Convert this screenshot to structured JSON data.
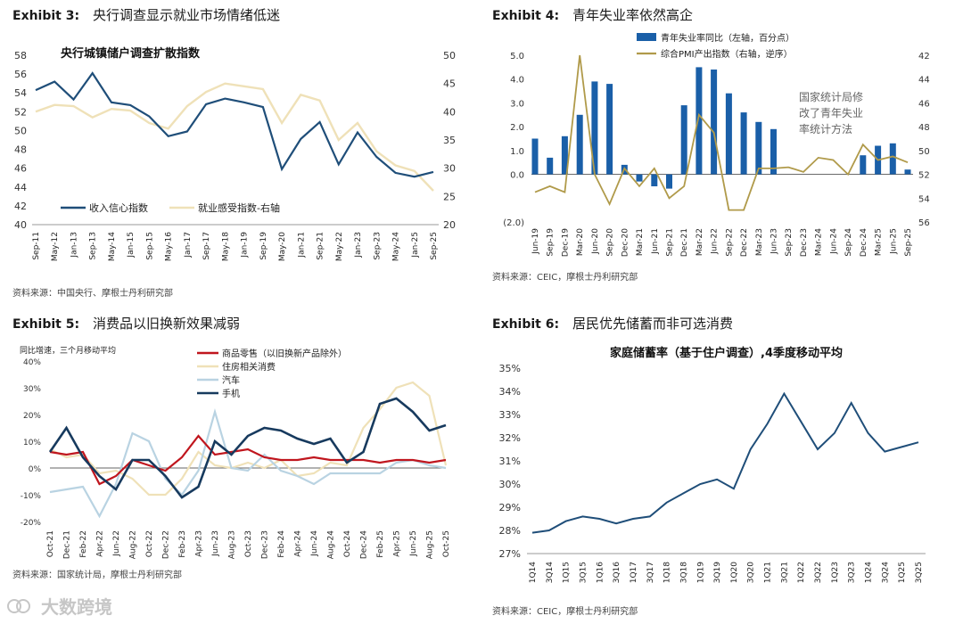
{
  "exhibits": [
    {
      "label": "Exhibit 3:",
      "title": "央行调查显示就业市场情绪低迷",
      "source": "资料来源：中国央行、摩根士丹利研究部"
    },
    {
      "label": "Exhibit 4:",
      "title": "青年失业率依然高企",
      "source": "资料来源：CEIC，摩根士丹利研究部"
    },
    {
      "label": "Exhibit 5:",
      "title": "消费品以旧换新效果减弱",
      "source": "资料来源：国家统计局，摩根士丹利研究部"
    },
    {
      "label": "Exhibit 6:",
      "title": "居民优先储蓄而非可选消费",
      "source": "资料来源：CEIC，摩根士丹利研究部"
    }
  ],
  "watermark": "大数跨境",
  "colors": {
    "navy": "#1f4e79",
    "cream": "#efe1b8",
    "blue": "#1a5fa8",
    "olive": "#b09a4a",
    "red": "#c0161e",
    "lightblue": "#b9d3e2",
    "darknavy": "#173a5e"
  },
  "chart_data": [
    {
      "type": "line",
      "title": "央行城镇储户调查扩散指数",
      "x": [
        "Sep-11",
        "May-12",
        "Jan-13",
        "Sep-13",
        "May-14",
        "Jan-15",
        "Sep-15",
        "May-16",
        "Jan-17",
        "Sep-17",
        "May-18",
        "Jan-19",
        "Sep-19",
        "May-20",
        "Jan-21",
        "Sep-21",
        "May-22",
        "Jan-23",
        "Sep-23",
        "May-24",
        "Jan-25",
        "Sep-25"
      ],
      "ylim": [
        40,
        58
      ],
      "yticks": [
        "58",
        "56",
        "54",
        "52",
        "50",
        "48",
        "46",
        "44",
        "42",
        "40"
      ],
      "y2lim": [
        20,
        50
      ],
      "y2ticks": [
        "50",
        "45",
        "40",
        "35",
        "30",
        "25",
        "20"
      ],
      "series": [
        {
          "name": "收入信心指数",
          "axis": "left",
          "values": [
            54.3,
            55.2,
            53.3,
            56.1,
            53.0,
            52.7,
            51.5,
            49.4,
            49.9,
            52.8,
            53.4,
            53.0,
            52.5,
            45.9,
            49.1,
            50.9,
            46.4,
            49.8,
            47.2,
            45.5,
            45.1,
            45.6
          ]
        },
        {
          "name": "就业感受指数-右轴",
          "axis": "right",
          "values": [
            40.0,
            41.2,
            41.0,
            39.0,
            40.5,
            40.2,
            38.0,
            37.0,
            41.0,
            43.5,
            45.0,
            44.5,
            44.0,
            38.0,
            43.0,
            42.0,
            35.0,
            38.0,
            33.0,
            30.5,
            29.5,
            26.0
          ]
        }
      ]
    },
    {
      "type": "bar",
      "x": [
        "Jun-19",
        "Sep-19",
        "Dec-19",
        "Mar-20",
        "Jun-20",
        "Sep-20",
        "Dec-20",
        "Mar-21",
        "Jun-21",
        "Sep-21",
        "Dec-21",
        "Mar-22",
        "Jun-22",
        "Sep-22",
        "Dec-22",
        "Mar-23",
        "Jun-23",
        "Sep-23",
        "Dec-23",
        "Mar-24",
        "Jun-24",
        "Sep-24",
        "Dec-24",
        "Mar-25",
        "Jun-25",
        "Sep-25"
      ],
      "ylim": [
        -2,
        5
      ],
      "yticks": [
        "5.0",
        "4.0",
        "3.0",
        "2.0",
        "1.0",
        "0.0",
        "(2.0)"
      ],
      "y2lim": [
        42,
        56
      ],
      "y2ticks": [
        "42",
        "44",
        "46",
        "48",
        "50",
        "52",
        "54",
        "56"
      ],
      "annotation": "国家统计局修改了青年失业率统计方法",
      "series": [
        {
          "name": "青年失业率同比（左轴，百分点）",
          "axis": "left",
          "values": [
            1.5,
            0.7,
            1.6,
            2.5,
            3.9,
            3.8,
            0.4,
            -0.3,
            -0.5,
            -0.6,
            2.9,
            4.5,
            4.4,
            3.4,
            2.6,
            2.2,
            1.9,
            null,
            null,
            null,
            null,
            null,
            0.8,
            1.2,
            1.3,
            0.2
          ]
        },
        {
          "name": "综合PMI产出指数（右轴，逆序）",
          "axis": "right",
          "values": [
            53.5,
            53.0,
            53.5,
            42.0,
            52.0,
            54.5,
            51.5,
            53.0,
            51.5,
            54.0,
            53.0,
            47.0,
            48.5,
            55.0,
            55.0,
            51.5,
            51.5,
            51.4,
            51.8,
            50.6,
            50.8,
            52.0,
            49.5,
            50.8,
            50.5,
            51.0
          ]
        }
      ]
    },
    {
      "type": "line",
      "ylabel": "同比增速，三个月移动平均",
      "x": [
        "Oct-21",
        "Dec-21",
        "Feb-22",
        "Apr-22",
        "Jun-22",
        "Aug-22",
        "Oct-22",
        "Dec-22",
        "Feb-23",
        "Apr-23",
        "Jun-23",
        "Aug-23",
        "Oct-23",
        "Dec-23",
        "Feb-24",
        "Apr-24",
        "Jun-24",
        "Aug-24",
        "Oct-24",
        "Dec-24",
        "Feb-25",
        "Apr-25",
        "Jun-25",
        "Aug-25",
        "Oct-25"
      ],
      "ylim": [
        -20,
        40
      ],
      "yticks": [
        "40%",
        "30%",
        "20%",
        "10%",
        "0%",
        "-10%",
        "-20%"
      ],
      "series": [
        {
          "name": "商品零售（以旧换新产品除外）",
          "values": [
            6,
            5,
            6,
            -6,
            -3,
            3,
            1,
            -1,
            4,
            12,
            5,
            6,
            7,
            4,
            3,
            3,
            4,
            3,
            3,
            3,
            2,
            3,
            3,
            2,
            3
          ]
        },
        {
          "name": "住房相关消费",
          "values": [
            7,
            4,
            5,
            -2,
            -1,
            -4,
            -10,
            -10,
            -4,
            6,
            1,
            0,
            2,
            0,
            3,
            -3,
            -2,
            2,
            1,
            15,
            22,
            30,
            32,
            27,
            1
          ]
        },
        {
          "name": "汽车",
          "values": [
            -9,
            -8,
            -7,
            -18,
            -6,
            13,
            10,
            -4,
            -10,
            -1,
            21,
            0,
            -1,
            5,
            -1,
            -3,
            -6,
            -2,
            -2,
            -2,
            -2,
            2,
            3,
            1,
            0
          ]
        },
        {
          "name": "手机",
          "values": [
            6,
            15,
            4,
            -3,
            -8,
            3,
            3,
            -3,
            -11,
            -7,
            10,
            5,
            12,
            15,
            14,
            11,
            9,
            11,
            2,
            6,
            24,
            26,
            21,
            14,
            16
          ]
        }
      ]
    },
    {
      "type": "line",
      "title": "家庭储蓄率（基于住户调查）,4季度移动平均",
      "x": [
        "1Q14",
        "3Q14",
        "1Q15",
        "3Q15",
        "1Q16",
        "3Q16",
        "1Q17",
        "3Q17",
        "1Q18",
        "3Q18",
        "1Q19",
        "3Q19",
        "1Q20",
        "3Q20",
        "1Q21",
        "3Q21",
        "1Q22",
        "3Q22",
        "1Q23",
        "3Q23",
        "1Q24",
        "3Q24",
        "1Q25",
        "3Q25"
      ],
      "ylim": [
        27,
        35
      ],
      "yticks": [
        "35%",
        "34%",
        "33%",
        "32%",
        "31%",
        "30%",
        "29%",
        "28%",
        "27%"
      ],
      "series": [
        {
          "name": "家庭储蓄率",
          "values": [
            27.9,
            28.0,
            28.4,
            28.6,
            28.5,
            28.3,
            28.5,
            28.6,
            29.2,
            29.6,
            30.0,
            30.2,
            29.8,
            31.5,
            32.6,
            33.9,
            32.7,
            31.5,
            32.2,
            33.5,
            32.2,
            31.4,
            31.6,
            31.8
          ]
        }
      ]
    }
  ]
}
